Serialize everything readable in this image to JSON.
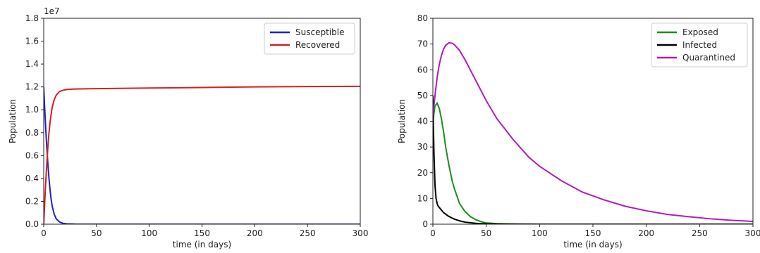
{
  "chart_data": [
    {
      "type": "line",
      "xlabel": "time (in days)",
      "ylabel": "Population",
      "y_multiplier_label": "1e7",
      "xlim": [
        0,
        300
      ],
      "ylim": [
        0,
        1.8
      ],
      "x_ticks": [
        "0",
        "50",
        "100",
        "150",
        "200",
        "250",
        "300"
      ],
      "y_ticks": [
        "0.0",
        "0.2",
        "0.4",
        "0.6",
        "0.8",
        "1.0",
        "1.2",
        "1.4",
        "1.6",
        "1.8"
      ],
      "grid": false,
      "legend_position": "top-right",
      "series": [
        {
          "name": "Susceptible",
          "color": "#1f22c8",
          "points": [
            [
              0,
              1.2
            ],
            [
              1,
              1.0
            ],
            [
              2,
              0.82
            ],
            [
              3,
              0.66
            ],
            [
              4,
              0.52
            ],
            [
              5,
              0.4
            ],
            [
              6,
              0.3
            ],
            [
              7,
              0.22
            ],
            [
              8,
              0.16
            ],
            [
              10,
              0.085
            ],
            [
              12,
              0.045
            ],
            [
              15,
              0.02
            ],
            [
              18,
              0.008
            ],
            [
              22,
              0.003
            ],
            [
              30,
              0.001
            ],
            [
              50,
              0.0
            ],
            [
              100,
              0.0
            ],
            [
              150,
              0.0
            ],
            [
              200,
              0.0
            ],
            [
              250,
              0.0
            ],
            [
              300,
              0.0
            ]
          ]
        },
        {
          "name": "Recovered",
          "color": "#d62020",
          "points": [
            [
              0,
              0.0
            ],
            [
              1,
              0.2
            ],
            [
              2,
              0.38
            ],
            [
              3,
              0.54
            ],
            [
              4,
              0.68
            ],
            [
              5,
              0.8
            ],
            [
              6,
              0.89
            ],
            [
              7,
              0.96
            ],
            [
              8,
              1.02
            ],
            [
              10,
              1.09
            ],
            [
              12,
              1.13
            ],
            [
              15,
              1.16
            ],
            [
              18,
              1.17
            ],
            [
              22,
              1.178
            ],
            [
              30,
              1.182
            ],
            [
              50,
              1.185
            ],
            [
              100,
              1.19
            ],
            [
              150,
              1.195
            ],
            [
              200,
              1.2
            ],
            [
              250,
              1.203
            ],
            [
              300,
              1.205
            ]
          ]
        }
      ]
    },
    {
      "type": "line",
      "xlabel": "time (in days)",
      "ylabel": "Population",
      "xlim": [
        0,
        300
      ],
      "ylim": [
        0,
        80
      ],
      "x_ticks": [
        "0",
        "50",
        "100",
        "150",
        "200",
        "250",
        "300"
      ],
      "y_ticks": [
        "0",
        "10",
        "20",
        "30",
        "40",
        "50",
        "60",
        "70",
        "80"
      ],
      "grid": false,
      "legend_position": "top-right",
      "series": [
        {
          "name": "Exposed",
          "color": "#1e8c1e",
          "points": [
            [
              0,
              40
            ],
            [
              2,
              46
            ],
            [
              4,
              47
            ],
            [
              6,
              45
            ],
            [
              8,
              41
            ],
            [
              10,
              36
            ],
            [
              12,
              30
            ],
            [
              15,
              23
            ],
            [
              18,
              17
            ],
            [
              20,
              14
            ],
            [
              25,
              8
            ],
            [
              30,
              5
            ],
            [
              35,
              3
            ],
            [
              40,
              1.8
            ],
            [
              45,
              1
            ],
            [
              50,
              0.5
            ],
            [
              60,
              0.2
            ],
            [
              80,
              0.05
            ],
            [
              100,
              0
            ],
            [
              150,
              0
            ],
            [
              200,
              0
            ],
            [
              250,
              0
            ],
            [
              300,
              0
            ]
          ]
        },
        {
          "name": "Infected",
          "color": "#000000",
          "points": [
            [
              0,
              50
            ],
            [
              0.5,
              38
            ],
            [
              1,
              28
            ],
            [
              2,
              15
            ],
            [
              3,
              10
            ],
            [
              4,
              8
            ],
            [
              5,
              7
            ],
            [
              8,
              5.5
            ],
            [
              10,
              4.5
            ],
            [
              15,
              3
            ],
            [
              20,
              2
            ],
            [
              25,
              1.3
            ],
            [
              30,
              0.8
            ],
            [
              40,
              0.35
            ],
            [
              50,
              0.15
            ],
            [
              70,
              0.05
            ],
            [
              100,
              0
            ],
            [
              150,
              0
            ],
            [
              200,
              0
            ],
            [
              250,
              0
            ],
            [
              300,
              0
            ]
          ]
        },
        {
          "name": "Quarantined",
          "color": "#b01cb8",
          "points": [
            [
              0,
              42
            ],
            [
              2,
              50
            ],
            [
              4,
              57
            ],
            [
              6,
              62
            ],
            [
              8,
              65.5
            ],
            [
              10,
              68
            ],
            [
              12,
              69.5
            ],
            [
              15,
              70.5
            ],
            [
              18,
              70.3
            ],
            [
              20,
              69.8
            ],
            [
              25,
              67.5
            ],
            [
              30,
              64
            ],
            [
              40,
              56
            ],
            [
              50,
              48
            ],
            [
              60,
              41
            ],
            [
              75,
              33
            ],
            [
              90,
              26
            ],
            [
              100,
              22.5
            ],
            [
              120,
              17
            ],
            [
              140,
              12.5
            ],
            [
              160,
              9.5
            ],
            [
              180,
              7
            ],
            [
              200,
              5.2
            ],
            [
              220,
              3.8
            ],
            [
              240,
              2.9
            ],
            [
              260,
              2.1
            ],
            [
              280,
              1.5
            ],
            [
              300,
              1.1
            ]
          ]
        }
      ]
    }
  ]
}
